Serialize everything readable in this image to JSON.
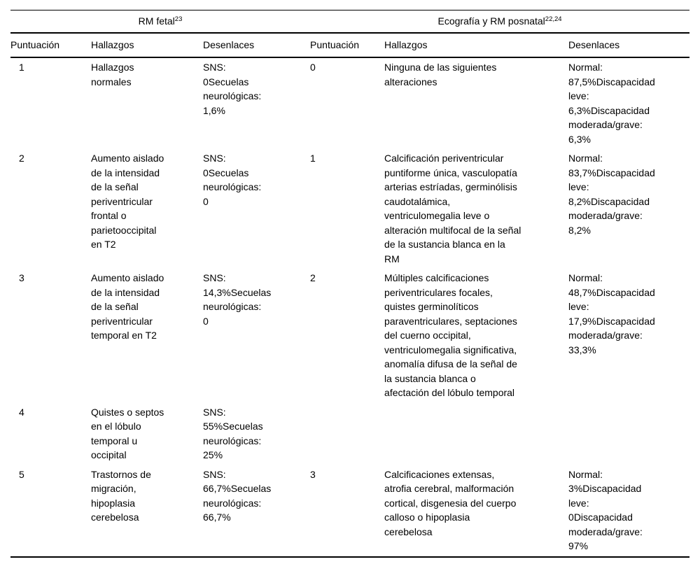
{
  "colors": {
    "text": "#000000",
    "background": "#ffffff",
    "rule": "#000000"
  },
  "table": {
    "groups": [
      {
        "label": "RM fetal",
        "sup": "23"
      },
      {
        "label": "Ecografía y RM posnatal",
        "sup": "22,24"
      }
    ],
    "columns": [
      "Puntuación",
      "Hallazgos",
      "Desenlaces",
      "Puntuación",
      "Hallazgos",
      "Desenlaces"
    ],
    "rows": [
      {
        "cells": [
          "1",
          "Hallazgos\nnormales",
          "SNS:\n0Secuelas\nneurológicas:\n1,6%",
          "0",
          "Ninguna de las siguientes\nalteraciones",
          "Normal:\n87,5%Discapacidad\nleve:\n6,3%Discapacidad\nmoderada/grave:\n6,3%"
        ]
      },
      {
        "cells": [
          "2",
          "Aumento aislado\nde la intensidad\nde la señal\nperiventricular\nfrontal o\nparietooccipital\nen T2",
          "SNS:\n0Secuelas\nneurológicas:\n0",
          "1",
          "Calcificación periventricular\npuntiforme única, vasculopatía\narterias estríadas, germinólisis\ncaudotalámica,\nventriculomegalia leve o\nalteración multifocal de la señal\nde la sustancia blanca en la\nRM",
          "Normal:\n83,7%Discapacidad\nleve:\n8,2%Discapacidad\nmoderada/grave:\n8,2%"
        ]
      },
      {
        "cells": [
          "3",
          "Aumento aislado\nde la intensidad\nde la señal\nperiventricular\ntemporal en T2",
          "SNS:\n14,3%Secuelas\nneurológicas:\n0",
          "2",
          "Múltiples calcificaciones\nperiventriculares focales,\nquistes germinolíticos\nparaventriculares, septaciones\ndel cuerno occipital,\nventriculomegalia significativa,\nanomalía difusa de la señal de\nla sustancia blanca o\nafectación del lóbulo temporal",
          "Normal:\n48,7%Discapacidad\nleve:\n17,9%Discapacidad\nmoderada/grave:\n33,3%"
        ]
      },
      {
        "cells": [
          "4",
          "Quistes o septos\nen el lóbulo\ntemporal u\noccipital",
          "SNS:\n55%Secuelas\nneurológicas:\n25%",
          "",
          "",
          ""
        ]
      },
      {
        "cells": [
          "5",
          "Trastornos de\nmigración,\nhipoplasia\ncerebelosa",
          "SNS:\n66,7%Secuelas\nneurológicas:\n66,7%",
          "3",
          "Calcificaciones extensas,\natrofia cerebral, malformación\ncortical, disgenesia del cuerpo\ncalloso o hipoplasia\ncerebelosa",
          "Normal:\n3%Discapacidad\nleve:\n0Discapacidad\nmoderada/grave:\n97%"
        ]
      }
    ]
  }
}
